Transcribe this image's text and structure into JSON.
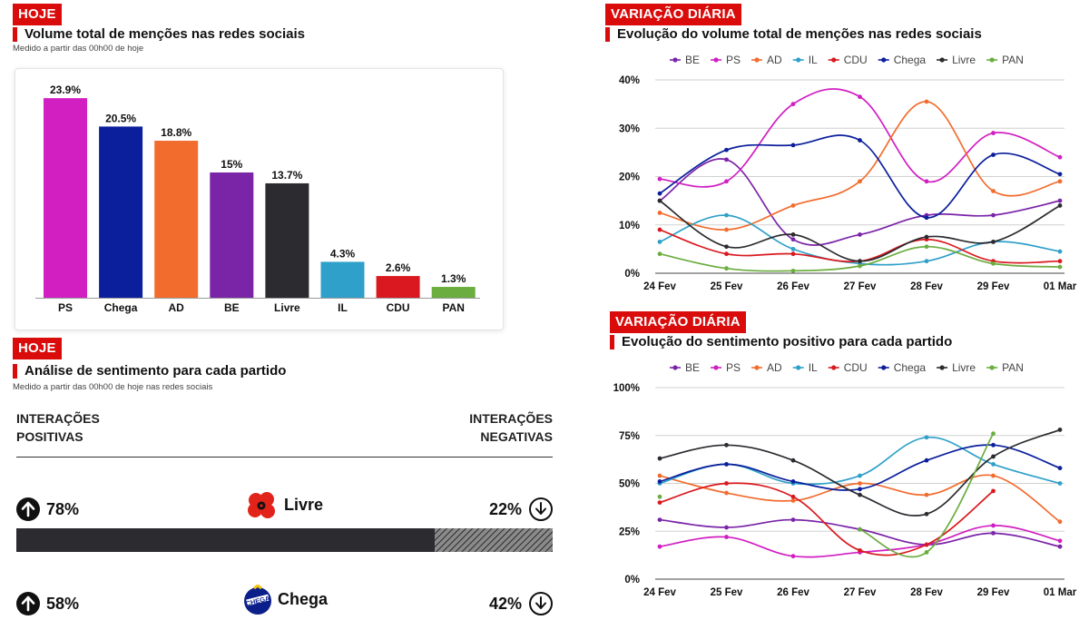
{
  "left": {
    "tag1": "HOJE",
    "title1": "Volume total de menções nas redes sociais",
    "note1": "Medido a partir das 00h00 de hoje",
    "tag2": "HOJE",
    "title2": "Análise de sentimento para cada partido",
    "note2": "Medido a partir das 00h00 de hoje nas redes sociais",
    "hdr_left_1": "INTERAÇÕES",
    "hdr_left_2": "POSITIVAS",
    "hdr_right_1": "INTERAÇÕES",
    "hdr_right_2": "NEGATIVAS",
    "sentiment": [
      {
        "party": "Livre",
        "positive": "78%",
        "negative": "22%",
        "pos_value": 78,
        "color": "#2b2b30"
      },
      {
        "party": "Chega",
        "positive": "58%",
        "negative": "42%",
        "pos_value": 58,
        "color": "#0b1f8a"
      }
    ]
  },
  "right": {
    "tag1": "VARIAÇÃO DIÁRIA",
    "title1": "Evolução do volume total de menções nas redes sociais",
    "tag2": "VARIAÇÃO DIÁRIA",
    "title2": "Evolução do sentimento positivo para cada partido"
  },
  "chart_data": [
    {
      "type": "bar",
      "categories": [
        "PS",
        "Chega",
        "AD",
        "BE",
        "Livre",
        "IL",
        "CDU",
        "PAN"
      ],
      "values": [
        23.9,
        20.5,
        18.8,
        15,
        13.7,
        4.3,
        2.6,
        1.3
      ],
      "labels": [
        "23.9%",
        "20.5%",
        "18.8%",
        "15%",
        "13.7%",
        "4.3%",
        "2.6%",
        "1.3%"
      ],
      "colors": [
        "#d11fc2",
        "#0b1f9c",
        "#f26c2e",
        "#7a24a8",
        "#2b2b30",
        "#2ea0c9",
        "#d9191f",
        "#6bad3f"
      ],
      "ylim": [
        0,
        25
      ]
    },
    {
      "type": "line",
      "x": [
        "24 Fev",
        "25 Fev",
        "26 Fev",
        "27 Fev",
        "28 Fev",
        "29 Fev",
        "01 Mar"
      ],
      "yticks": [
        "0%",
        "10%",
        "20%",
        "30%",
        "40%"
      ],
      "ylim": [
        0,
        40
      ],
      "series": [
        {
          "name": "BE",
          "color": "#7a24a8",
          "values": [
            15,
            23.5,
            7,
            8,
            12,
            12,
            15
          ]
        },
        {
          "name": "PS",
          "color": "#d11fc2",
          "values": [
            19.5,
            19,
            35,
            36.5,
            19,
            29,
            24
          ]
        },
        {
          "name": "AD",
          "color": "#f26c2e",
          "values": [
            12.5,
            9,
            14,
            19,
            35.5,
            17,
            19
          ]
        },
        {
          "name": "IL",
          "color": "#2ea0c9",
          "values": [
            6.5,
            12,
            5,
            2,
            2.5,
            6.5,
            4.5
          ]
        },
        {
          "name": "CDU",
          "color": "#d9191f",
          "values": [
            9,
            4,
            4,
            2.5,
            7,
            2.5,
            2.5
          ]
        },
        {
          "name": "Chega",
          "color": "#0b1f9c",
          "values": [
            16.5,
            25.5,
            26.5,
            27.5,
            11.5,
            24.5,
            20.5
          ]
        },
        {
          "name": "Livre",
          "color": "#2b2b30",
          "values": [
            15,
            5.5,
            8,
            2.5,
            7.5,
            6.5,
            14
          ]
        },
        {
          "name": "PAN",
          "color": "#6bad3f",
          "values": [
            4,
            1,
            0.5,
            1.5,
            5.5,
            2,
            1.3
          ]
        }
      ]
    },
    {
      "type": "line",
      "x": [
        "24 Fev",
        "25 Fev",
        "26 Fev",
        "27 Fev",
        "28 Fev",
        "29 Fev",
        "01 Mar"
      ],
      "yticks": [
        "0%",
        "25%",
        "50%",
        "75%",
        "100%"
      ],
      "ylim": [
        0,
        100
      ],
      "series": [
        {
          "name": "BE",
          "color": "#7a24a8",
          "values": [
            31,
            27,
            31,
            26,
            18,
            24,
            17
          ]
        },
        {
          "name": "PS",
          "color": "#d11fc2",
          "values": [
            17,
            22,
            12,
            14,
            18,
            28,
            20
          ]
        },
        {
          "name": "AD",
          "color": "#f26c2e",
          "values": [
            54,
            45,
            41,
            50,
            44,
            54,
            30
          ]
        },
        {
          "name": "IL",
          "color": "#2ea0c9",
          "values": [
            50,
            60,
            50,
            54,
            74,
            60,
            50
          ]
        },
        {
          "name": "CDU",
          "color": "#d9191f",
          "values": [
            40,
            50,
            43,
            15,
            18,
            46,
            null
          ]
        },
        {
          "name": "Chega",
          "color": "#0b1f9c",
          "values": [
            51,
            60,
            51,
            47,
            62,
            70,
            58
          ]
        },
        {
          "name": "Livre",
          "color": "#2b2b30",
          "values": [
            63,
            70,
            62,
            44,
            34,
            64,
            78
          ]
        },
        {
          "name": "PAN",
          "color": "#6bad3f",
          "values": [
            43,
            null,
            null,
            26,
            14,
            76,
            null
          ]
        }
      ]
    }
  ]
}
